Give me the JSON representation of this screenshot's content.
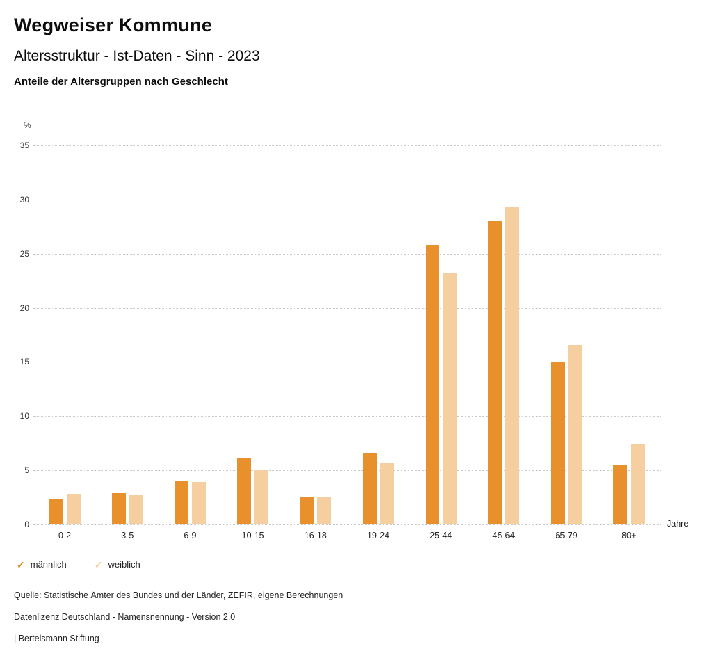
{
  "header": {
    "title": "Wegweiser Kommune",
    "subtitle": "Altersstruktur - Ist-Daten - Sinn - 2023",
    "chart_heading": "Anteile der Altersgruppen nach Geschlecht"
  },
  "chart_data": {
    "type": "bar",
    "title": "Anteile der Altersgruppen nach Geschlecht",
    "categories": [
      "0-2",
      "3-5",
      "6-9",
      "10-15",
      "16-18",
      "19-24",
      "25-44",
      "45-64",
      "65-79",
      "80+"
    ],
    "series": [
      {
        "name": "männlich",
        "color": "#E8902C",
        "values": [
          2.4,
          2.9,
          4.0,
          6.2,
          2.6,
          6.6,
          25.8,
          28.0,
          15.0,
          5.5
        ]
      },
      {
        "name": "weiblich",
        "color": "#F6CFA0",
        "values": [
          2.8,
          2.7,
          3.9,
          5.0,
          2.6,
          5.7,
          23.2,
          29.3,
          16.6,
          7.4
        ]
      }
    ],
    "ylabel": "%",
    "xlabel": "Jahre",
    "yticks": [
      0,
      5,
      10,
      15,
      20,
      25,
      30,
      35
    ],
    "ylim": [
      0,
      35
    ],
    "grid": true,
    "legend_position": "bottom-left",
    "legend_check_icon": "✓"
  },
  "footer": {
    "source": "Quelle: Statistische Ämter des Bundes und der Länder, ZEFIR, eigene Berechnungen",
    "license": "Datenlizenz Deutschland - Namensnennung - Version 2.0",
    "attribution": "| Bertelsmann Stiftung"
  }
}
